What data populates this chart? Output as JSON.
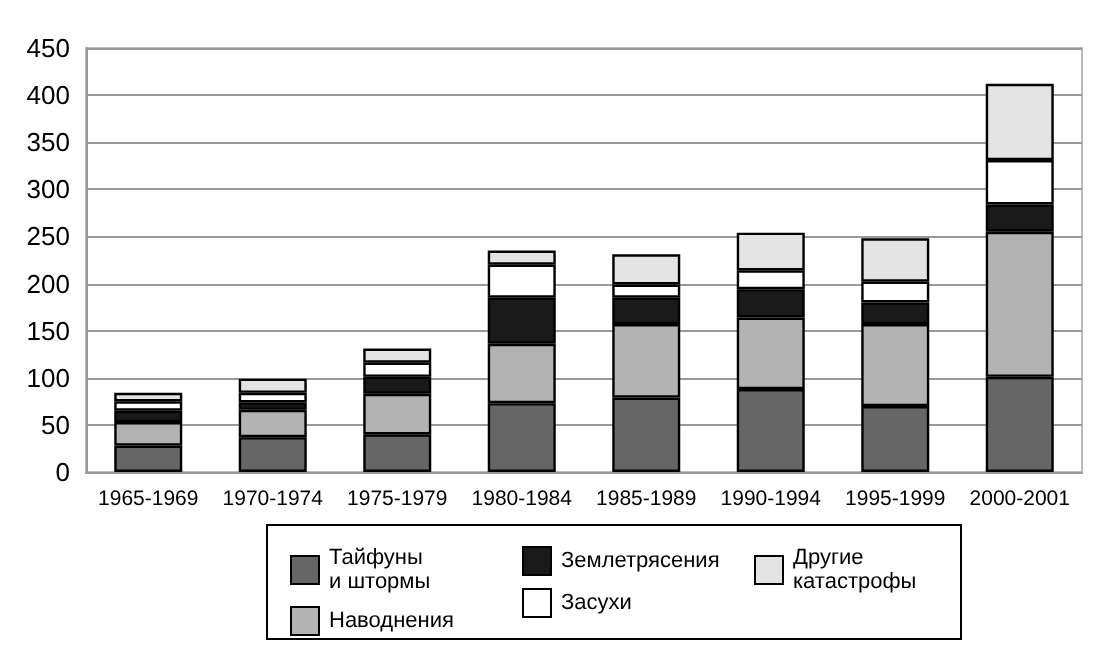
{
  "chart_data": {
    "type": "bar",
    "stacked": true,
    "categories": [
      "1965-1969",
      "1970-1974",
      "1975-1979",
      "1980-1984",
      "1985-1989",
      "1990-1994",
      "1995-1999",
      "2000-2001"
    ],
    "series": [
      {
        "name": "Тайфуны\nи штормы",
        "color": "#666666",
        "values": [
          28,
          37,
          40,
          73,
          79,
          88,
          70,
          101
        ]
      },
      {
        "name": "Наводнения",
        "color": "#b3b3b3",
        "values": [
          25,
          29,
          43,
          63,
          78,
          76,
          87,
          154
        ]
      },
      {
        "name": "Землетрясения",
        "color": "#1a1a1a",
        "values": [
          12,
          8,
          18,
          49,
          28,
          30,
          23,
          29
        ]
      },
      {
        "name": "Засухи",
        "color": "#ffffff",
        "values": [
          10,
          10,
          15,
          35,
          14,
          20,
          22,
          47
        ]
      },
      {
        "name": "Другие\nкатастрофы",
        "color": "#e3e3e4",
        "values": [
          9,
          15,
          15,
          15,
          32,
          40,
          46,
          81
        ]
      }
    ],
    "ylim": [
      0,
      450
    ],
    "yticks": [
      0,
      50,
      100,
      150,
      200,
      250,
      300,
      350,
      400,
      450
    ],
    "grid": "y",
    "legend": "bottom"
  }
}
